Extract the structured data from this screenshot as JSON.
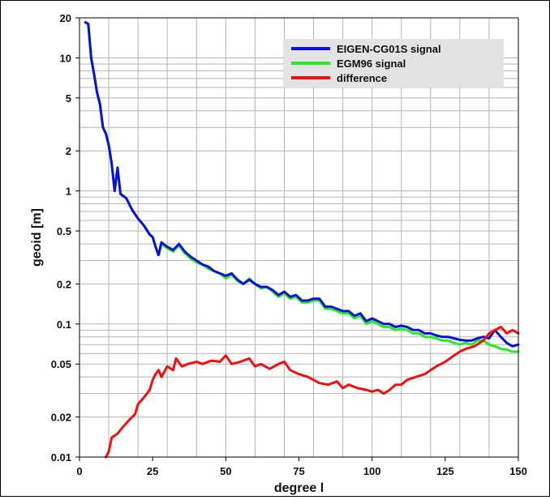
{
  "chart_data": {
    "type": "line",
    "xlabel": "degree l",
    "ylabel": "geoid [m]",
    "xlim": [
      0,
      150
    ],
    "ylim": [
      0.01,
      20
    ],
    "yscale": "log",
    "grid": true,
    "legend_position": "top-right",
    "x_ticks": [
      {
        "value": 0,
        "label": "0"
      },
      {
        "value": 25,
        "label": "25"
      },
      {
        "value": 50,
        "label": "50"
      },
      {
        "value": 75,
        "label": "75"
      },
      {
        "value": 100,
        "label": "100"
      },
      {
        "value": 125,
        "label": "125"
      },
      {
        "value": 150,
        "label": "150"
      }
    ],
    "y_ticks": [
      {
        "value": 0.01,
        "label": "0.01"
      },
      {
        "value": 0.02,
        "label": "0.02"
      },
      {
        "value": 0.05,
        "label": "0.05"
      },
      {
        "value": 0.1,
        "label": "0.1"
      },
      {
        "value": 0.2,
        "label": "0.2"
      },
      {
        "value": 0.5,
        "label": "0.5"
      },
      {
        "value": 1,
        "label": "1"
      },
      {
        "value": 2,
        "label": "2"
      },
      {
        "value": 5,
        "label": "5"
      },
      {
        "value": 10,
        "label": "10"
      },
      {
        "value": 20,
        "label": "20"
      }
    ],
    "series": [
      {
        "name": "EGM96 signal",
        "color": "#22ee22",
        "points": [
          [
            2,
            18.5
          ],
          [
            3,
            18
          ],
          [
            4,
            10
          ],
          [
            5,
            7.5
          ],
          [
            6,
            5.5
          ],
          [
            7,
            4.5
          ],
          [
            8,
            3
          ],
          [
            9,
            2.7
          ],
          [
            10,
            2.2
          ],
          [
            11,
            1.6
          ],
          [
            12,
            1.0
          ],
          [
            13,
            1.45
          ],
          [
            14,
            0.95
          ],
          [
            16,
            0.88
          ],
          [
            18,
            0.72
          ],
          [
            20,
            0.62
          ],
          [
            22,
            0.55
          ],
          [
            24,
            0.47
          ],
          [
            25,
            0.45
          ],
          [
            26,
            0.38
          ],
          [
            27,
            0.33
          ],
          [
            28,
            0.4
          ],
          [
            30,
            0.37
          ],
          [
            32,
            0.35
          ],
          [
            34,
            0.39
          ],
          [
            36,
            0.34
          ],
          [
            38,
            0.31
          ],
          [
            40,
            0.29
          ],
          [
            42,
            0.28
          ],
          [
            44,
            0.26
          ],
          [
            46,
            0.25
          ],
          [
            48,
            0.24
          ],
          [
            50,
            0.22
          ],
          [
            52,
            0.235
          ],
          [
            54,
            0.21
          ],
          [
            56,
            0.2
          ],
          [
            58,
            0.22
          ],
          [
            60,
            0.2
          ],
          [
            62,
            0.185
          ],
          [
            64,
            0.19
          ],
          [
            66,
            0.175
          ],
          [
            68,
            0.16
          ],
          [
            70,
            0.17
          ],
          [
            72,
            0.155
          ],
          [
            74,
            0.16
          ],
          [
            76,
            0.145
          ],
          [
            78,
            0.145
          ],
          [
            80,
            0.15
          ],
          [
            82,
            0.15
          ],
          [
            84,
            0.13
          ],
          [
            86,
            0.13
          ],
          [
            88,
            0.125
          ],
          [
            90,
            0.12
          ],
          [
            92,
            0.12
          ],
          [
            94,
            0.11
          ],
          [
            96,
            0.115
          ],
          [
            98,
            0.1
          ],
          [
            100,
            0.105
          ],
          [
            102,
            0.1
          ],
          [
            104,
            0.095
          ],
          [
            106,
            0.095
          ],
          [
            108,
            0.09
          ],
          [
            110,
            0.092
          ],
          [
            112,
            0.09
          ],
          [
            114,
            0.085
          ],
          [
            116,
            0.085
          ],
          [
            118,
            0.08
          ],
          [
            120,
            0.08
          ],
          [
            122,
            0.078
          ],
          [
            124,
            0.075
          ],
          [
            126,
            0.075
          ],
          [
            128,
            0.072
          ],
          [
            130,
            0.07
          ],
          [
            132,
            0.072
          ],
          [
            134,
            0.07
          ],
          [
            136,
            0.075
          ],
          [
            138,
            0.075
          ],
          [
            140,
            0.07
          ],
          [
            142,
            0.068
          ],
          [
            144,
            0.065
          ],
          [
            146,
            0.064
          ],
          [
            148,
            0.062
          ],
          [
            150,
            0.062
          ]
        ]
      },
      {
        "name": "EIGEN-CG01S signal",
        "color": "#0a10d8",
        "points": [
          [
            2,
            18.5
          ],
          [
            3,
            18
          ],
          [
            4,
            10
          ],
          [
            5,
            7.5
          ],
          [
            6,
            5.5
          ],
          [
            7,
            4.5
          ],
          [
            8,
            3
          ],
          [
            9,
            2.7
          ],
          [
            10,
            2.2
          ],
          [
            11,
            1.6
          ],
          [
            12,
            1.0
          ],
          [
            13,
            1.5
          ],
          [
            14,
            0.95
          ],
          [
            16,
            0.88
          ],
          [
            18,
            0.72
          ],
          [
            20,
            0.62
          ],
          [
            22,
            0.55
          ],
          [
            24,
            0.47
          ],
          [
            25,
            0.45
          ],
          [
            26,
            0.38
          ],
          [
            27,
            0.33
          ],
          [
            28,
            0.41
          ],
          [
            30,
            0.38
          ],
          [
            32,
            0.36
          ],
          [
            34,
            0.4
          ],
          [
            36,
            0.35
          ],
          [
            38,
            0.32
          ],
          [
            40,
            0.3
          ],
          [
            42,
            0.28
          ],
          [
            44,
            0.27
          ],
          [
            46,
            0.25
          ],
          [
            48,
            0.24
          ],
          [
            50,
            0.23
          ],
          [
            52,
            0.24
          ],
          [
            54,
            0.215
          ],
          [
            56,
            0.2
          ],
          [
            58,
            0.215
          ],
          [
            60,
            0.2
          ],
          [
            62,
            0.19
          ],
          [
            64,
            0.19
          ],
          [
            66,
            0.18
          ],
          [
            68,
            0.165
          ],
          [
            70,
            0.175
          ],
          [
            72,
            0.16
          ],
          [
            74,
            0.165
          ],
          [
            76,
            0.15
          ],
          [
            78,
            0.15
          ],
          [
            80,
            0.155
          ],
          [
            82,
            0.155
          ],
          [
            84,
            0.135
          ],
          [
            86,
            0.135
          ],
          [
            88,
            0.13
          ],
          [
            90,
            0.125
          ],
          [
            92,
            0.125
          ],
          [
            94,
            0.115
          ],
          [
            96,
            0.12
          ],
          [
            98,
            0.105
          ],
          [
            100,
            0.11
          ],
          [
            102,
            0.105
          ],
          [
            104,
            0.1
          ],
          [
            106,
            0.1
          ],
          [
            108,
            0.095
          ],
          [
            110,
            0.097
          ],
          [
            112,
            0.095
          ],
          [
            114,
            0.09
          ],
          [
            116,
            0.09
          ],
          [
            118,
            0.085
          ],
          [
            120,
            0.085
          ],
          [
            122,
            0.082
          ],
          [
            124,
            0.08
          ],
          [
            126,
            0.08
          ],
          [
            128,
            0.078
          ],
          [
            130,
            0.076
          ],
          [
            132,
            0.075
          ],
          [
            134,
            0.075
          ],
          [
            136,
            0.078
          ],
          [
            138,
            0.08
          ],
          [
            140,
            0.078
          ],
          [
            142,
            0.09
          ],
          [
            144,
            0.08
          ],
          [
            146,
            0.072
          ],
          [
            148,
            0.068
          ],
          [
            150,
            0.07
          ]
        ]
      },
      {
        "name": "difference",
        "color": "#ee1111",
        "points": [
          [
            9,
            0.01
          ],
          [
            10,
            0.011
          ],
          [
            11,
            0.014
          ],
          [
            13,
            0.015
          ],
          [
            15,
            0.017
          ],
          [
            17,
            0.019
          ],
          [
            19,
            0.021
          ],
          [
            20,
            0.025
          ],
          [
            22,
            0.028
          ],
          [
            24,
            0.032
          ],
          [
            25,
            0.038
          ],
          [
            26,
            0.042
          ],
          [
            27,
            0.045
          ],
          [
            28,
            0.04
          ],
          [
            30,
            0.048
          ],
          [
            32,
            0.045
          ],
          [
            33,
            0.055
          ],
          [
            35,
            0.048
          ],
          [
            37,
            0.05
          ],
          [
            40,
            0.052
          ],
          [
            42,
            0.05
          ],
          [
            45,
            0.053
          ],
          [
            48,
            0.052
          ],
          [
            50,
            0.058
          ],
          [
            52,
            0.05
          ],
          [
            55,
            0.052
          ],
          [
            58,
            0.055
          ],
          [
            60,
            0.048
          ],
          [
            62,
            0.05
          ],
          [
            65,
            0.046
          ],
          [
            68,
            0.05
          ],
          [
            70,
            0.052
          ],
          [
            72,
            0.045
          ],
          [
            75,
            0.042
          ],
          [
            78,
            0.04
          ],
          [
            80,
            0.038
          ],
          [
            82,
            0.036
          ],
          [
            85,
            0.035
          ],
          [
            88,
            0.037
          ],
          [
            90,
            0.033
          ],
          [
            92,
            0.035
          ],
          [
            95,
            0.033
          ],
          [
            98,
            0.032
          ],
          [
            100,
            0.031
          ],
          [
            102,
            0.032
          ],
          [
            104,
            0.03
          ],
          [
            106,
            0.032
          ],
          [
            108,
            0.035
          ],
          [
            110,
            0.035
          ],
          [
            112,
            0.038
          ],
          [
            115,
            0.04
          ],
          [
            118,
            0.042
          ],
          [
            120,
            0.045
          ],
          [
            122,
            0.048
          ],
          [
            125,
            0.052
          ],
          [
            128,
            0.058
          ],
          [
            130,
            0.062
          ],
          [
            132,
            0.065
          ],
          [
            135,
            0.068
          ],
          [
            138,
            0.075
          ],
          [
            140,
            0.085
          ],
          [
            142,
            0.09
          ],
          [
            144,
            0.095
          ],
          [
            146,
            0.085
          ],
          [
            148,
            0.09
          ],
          [
            150,
            0.085
          ]
        ]
      }
    ],
    "legend": [
      {
        "label": "EIGEN-CG01S signal",
        "color": "#0a10d8"
      },
      {
        "label": "EGM96 signal",
        "color": "#22ee22"
      },
      {
        "label": "difference",
        "color": "#ee1111"
      }
    ]
  }
}
